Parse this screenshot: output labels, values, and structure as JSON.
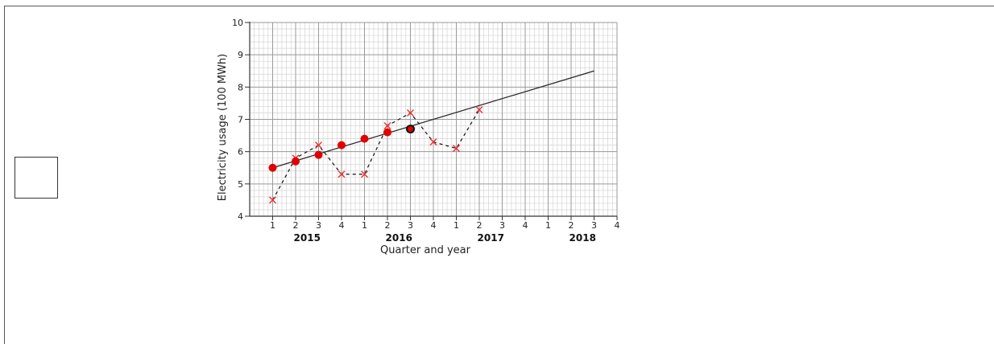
{
  "answer_box": {
    "checked": false
  },
  "chart_data": {
    "type": "scatter",
    "xlabel": "Quarter and year",
    "ylabel": "Electricity usage (100 MWh)",
    "ylim": [
      4,
      10
    ],
    "yticks": [
      4,
      5,
      6,
      7,
      8,
      9,
      10
    ],
    "xlim": [
      0,
      16
    ],
    "x_tick_positions": [
      1,
      2,
      3,
      4,
      5,
      6,
      7,
      8,
      9,
      10,
      11,
      12,
      13,
      14,
      15,
      16
    ],
    "x_tick_labels": [
      "1",
      "2",
      "3",
      "4",
      "1",
      "2",
      "3",
      "4",
      "1",
      "2",
      "3",
      "4",
      "1",
      "2",
      "3",
      "4"
    ],
    "x_group_labels": [
      {
        "label": "2015",
        "x": 2.5
      },
      {
        "label": "2016",
        "x": 6.5
      },
      {
        "label": "2017",
        "x": 10.5
      },
      {
        "label": "2018",
        "x": 14.5
      }
    ],
    "grid": true,
    "series": [
      {
        "style": "x-marker-dashed",
        "color": "#e83030",
        "points": [
          {
            "x": 1,
            "y": 4.5
          },
          {
            "x": 2,
            "y": 5.8
          },
          {
            "x": 3,
            "y": 6.2
          },
          {
            "x": 4,
            "y": 5.3
          },
          {
            "x": 5,
            "y": 5.3
          },
          {
            "x": 6,
            "y": 6.8
          },
          {
            "x": 7,
            "y": 7.2
          },
          {
            "x": 8,
            "y": 6.3
          },
          {
            "x": 9,
            "y": 6.1
          },
          {
            "x": 10,
            "y": 7.3
          }
        ]
      },
      {
        "style": "dot",
        "color": "#e00000",
        "points": [
          {
            "x": 1,
            "y": 5.5
          },
          {
            "x": 2,
            "y": 5.7
          },
          {
            "x": 3,
            "y": 5.9
          },
          {
            "x": 4,
            "y": 6.2
          },
          {
            "x": 5,
            "y": 6.4
          },
          {
            "x": 6,
            "y": 6.6
          },
          {
            "x": 7,
            "y": 6.7
          }
        ],
        "highlighted_index": 6
      },
      {
        "style": "trend-line",
        "color": "#222222",
        "points": [
          {
            "x": 1,
            "y": 5.5
          },
          {
            "x": 15,
            "y": 8.5
          }
        ]
      }
    ]
  }
}
